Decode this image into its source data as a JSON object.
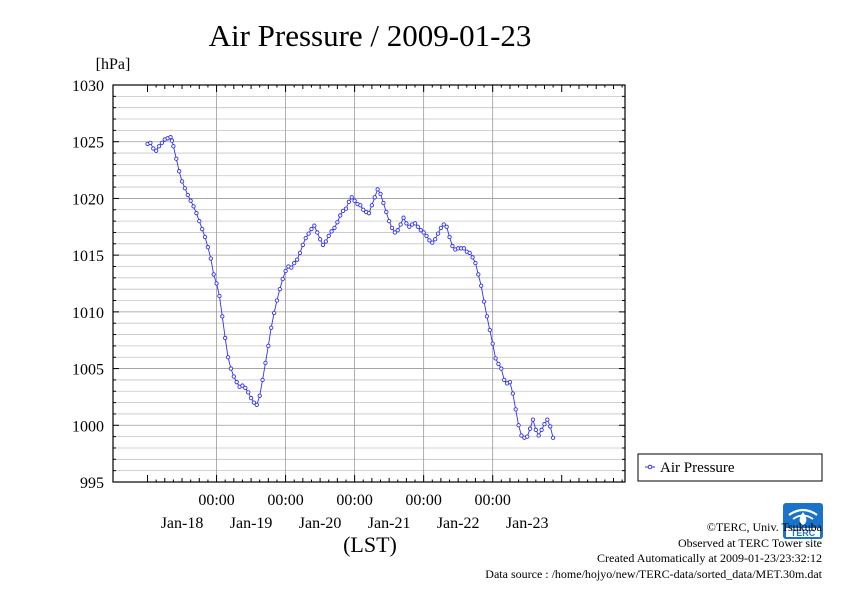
{
  "chart_data": {
    "type": "line",
    "title": "Air Pressure / 2009-01-23",
    "ylabel": "[hPa]",
    "xlabel": "(LST)",
    "ylim": [
      995,
      1030
    ],
    "yticks": [
      995,
      1000,
      1005,
      1010,
      1015,
      1020,
      1025,
      1030
    ],
    "x_range_hours": [
      -12,
      166
    ],
    "xticks": [
      {
        "hour": 24,
        "time": "00:00"
      },
      {
        "hour": 48,
        "time": "00:00"
      },
      {
        "hour": 72,
        "time": "00:00"
      },
      {
        "hour": 96,
        "time": "00:00"
      },
      {
        "hour": 120,
        "time": "00:00"
      }
    ],
    "date_labels": [
      {
        "hour": 12,
        "date": "Jan-18"
      },
      {
        "hour": 36,
        "date": "Jan-19"
      },
      {
        "hour": 60,
        "date": "Jan-20"
      },
      {
        "hour": 84,
        "date": "Jan-21"
      },
      {
        "hour": 108,
        "date": "Jan-22"
      },
      {
        "hour": 132,
        "date": "Jan-23"
      }
    ],
    "grid": true,
    "legend_position": "right",
    "series": [
      {
        "name": "Air Pressure",
        "color": "#3333ee",
        "points": [
          [
            0,
            1024.8
          ],
          [
            1,
            1024.9
          ],
          [
            2,
            1024.4
          ],
          [
            3,
            1024.2
          ],
          [
            4,
            1024.6
          ],
          [
            5,
            1024.9
          ],
          [
            6,
            1025.2
          ],
          [
            7,
            1025.3
          ],
          [
            8,
            1025.4
          ],
          [
            8.5,
            1025.1
          ],
          [
            9,
            1024.6
          ],
          [
            10,
            1023.5
          ],
          [
            11,
            1022.4
          ],
          [
            12,
            1021.5
          ],
          [
            13,
            1020.9
          ],
          [
            14,
            1020.3
          ],
          [
            15,
            1019.8
          ],
          [
            16,
            1019.3
          ],
          [
            17,
            1018.7
          ],
          [
            18,
            1018.0
          ],
          [
            19,
            1017.3
          ],
          [
            20,
            1016.6
          ],
          [
            21,
            1015.7
          ],
          [
            22,
            1014.7
          ],
          [
            23,
            1013.3
          ],
          [
            24,
            1012.5
          ],
          [
            25,
            1011.4
          ],
          [
            26,
            1009.6
          ],
          [
            27,
            1007.7
          ],
          [
            28,
            1006.0
          ],
          [
            29,
            1005.0
          ],
          [
            30,
            1004.3
          ],
          [
            31,
            1003.8
          ],
          [
            32,
            1003.4
          ],
          [
            33,
            1003.5
          ],
          [
            34,
            1003.3
          ],
          [
            35,
            1002.9
          ],
          [
            36,
            1002.4
          ],
          [
            37,
            1002.0
          ],
          [
            38,
            1001.8
          ],
          [
            39,
            1002.6
          ],
          [
            40,
            1004.0
          ],
          [
            41,
            1005.5
          ],
          [
            42,
            1007.0
          ],
          [
            43,
            1008.6
          ],
          [
            44,
            1009.9
          ],
          [
            45,
            1011.0
          ],
          [
            46,
            1012.0
          ],
          [
            47,
            1012.9
          ],
          [
            48,
            1013.6
          ],
          [
            49,
            1014.0
          ],
          [
            50,
            1013.9
          ],
          [
            51,
            1014.3
          ],
          [
            52,
            1014.6
          ],
          [
            53,
            1015.2
          ],
          [
            54,
            1015.9
          ],
          [
            55,
            1016.5
          ],
          [
            56,
            1016.9
          ],
          [
            57,
            1017.3
          ],
          [
            58,
            1017.6
          ],
          [
            59,
            1017.0
          ],
          [
            60,
            1016.4
          ],
          [
            61,
            1015.9
          ],
          [
            62,
            1016.2
          ],
          [
            63,
            1016.7
          ],
          [
            64,
            1017.1
          ],
          [
            65,
            1017.4
          ],
          [
            66,
            1017.9
          ],
          [
            67,
            1018.5
          ],
          [
            68,
            1018.9
          ],
          [
            69,
            1019.1
          ],
          [
            70,
            1019.7
          ],
          [
            71,
            1020.1
          ],
          [
            72,
            1019.8
          ],
          [
            73,
            1019.5
          ],
          [
            74,
            1019.4
          ],
          [
            75,
            1019.0
          ],
          [
            76,
            1018.8
          ],
          [
            77,
            1018.7
          ],
          [
            78,
            1019.4
          ],
          [
            79,
            1020.1
          ],
          [
            80,
            1020.8
          ],
          [
            81,
            1020.4
          ],
          [
            82,
            1019.6
          ],
          [
            83,
            1018.8
          ],
          [
            84,
            1018.0
          ],
          [
            85,
            1017.4
          ],
          [
            86,
            1017.0
          ],
          [
            87,
            1017.2
          ],
          [
            88,
            1017.7
          ],
          [
            89,
            1018.3
          ],
          [
            90,
            1017.8
          ],
          [
            91,
            1017.5
          ],
          [
            92,
            1017.7
          ],
          [
            93,
            1017.8
          ],
          [
            94,
            1017.5
          ],
          [
            95,
            1017.2
          ],
          [
            96,
            1017.0
          ],
          [
            97,
            1016.7
          ],
          [
            98,
            1016.3
          ],
          [
            99,
            1016.1
          ],
          [
            100,
            1016.4
          ],
          [
            101,
            1016.9
          ],
          [
            102,
            1017.4
          ],
          [
            103,
            1017.7
          ],
          [
            104,
            1017.5
          ],
          [
            105,
            1016.6
          ],
          [
            106,
            1015.8
          ],
          [
            107,
            1015.5
          ],
          [
            108,
            1015.6
          ],
          [
            109,
            1015.6
          ],
          [
            110,
            1015.6
          ],
          [
            111,
            1015.3
          ],
          [
            112,
            1015.2
          ],
          [
            113,
            1014.8
          ],
          [
            114,
            1014.3
          ],
          [
            115,
            1013.3
          ],
          [
            116,
            1012.3
          ],
          [
            117,
            1010.9
          ],
          [
            118,
            1009.6
          ],
          [
            119,
            1008.4
          ],
          [
            120,
            1007.2
          ],
          [
            121,
            1005.9
          ],
          [
            122,
            1005.4
          ],
          [
            123,
            1005.0
          ],
          [
            124,
            1004.0
          ],
          [
            125,
            1003.7
          ],
          [
            126,
            1003.8
          ],
          [
            127,
            1002.8
          ],
          [
            128,
            1001.4
          ],
          [
            129,
            1000.0
          ],
          [
            130,
            999.1
          ],
          [
            131,
            998.9
          ],
          [
            132,
            999.0
          ],
          [
            133,
            999.7
          ],
          [
            134,
            1000.5
          ],
          [
            135,
            999.6
          ],
          [
            136,
            999.1
          ],
          [
            137,
            999.6
          ],
          [
            138,
            1000.1
          ],
          [
            139,
            1000.5
          ],
          [
            140,
            999.9
          ],
          [
            141,
            998.9
          ]
        ]
      }
    ]
  },
  "credits": {
    "copyright": "©TERC, Univ. Tsukuba",
    "observed": "Observed at TERC Tower site",
    "created": "Created Automatically at 2009-01-23/23:32:12",
    "source": "Data source : /home/hojyo/new/TERC-data/sorted_data/MET.30m.dat"
  },
  "logo": {
    "text": "TERC",
    "color": "#1a73c8"
  }
}
